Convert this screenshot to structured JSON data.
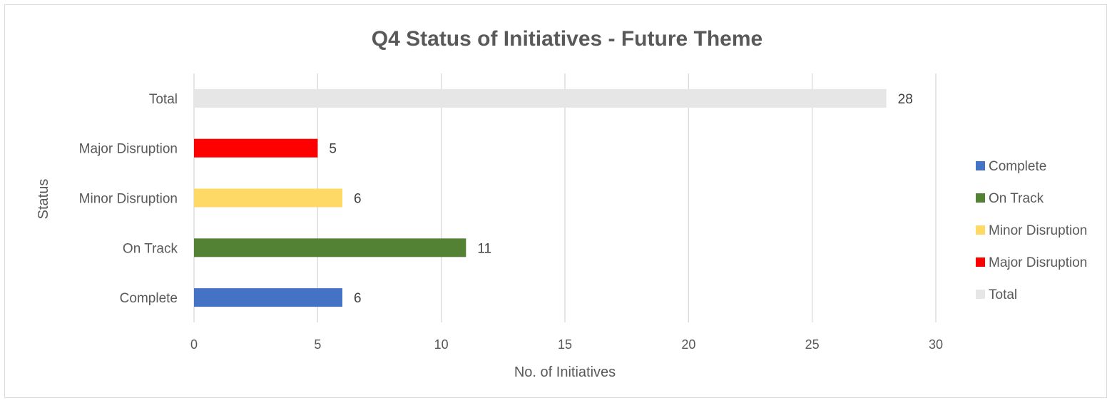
{
  "chart_data": {
    "type": "bar",
    "orientation": "horizontal",
    "title": "Q4 Status of Initiatives - Future Theme",
    "xlabel": "No. of Initiatives",
    "ylabel": "Status",
    "xlim": [
      0,
      30
    ],
    "xticks": [
      0,
      5,
      10,
      15,
      20,
      25,
      30
    ],
    "grid": "vertical",
    "legend_position": "right",
    "categories": [
      "Complete",
      "On Track",
      "Minor Disruption",
      "Major Disruption",
      "Total"
    ],
    "values": [
      6,
      11,
      6,
      5,
      28
    ],
    "colors": [
      "#4472C4",
      "#548235",
      "#FFD966",
      "#FF0000",
      "#E6E6E6"
    ],
    "legend": [
      "Complete",
      "On Track",
      "Minor Disruption",
      "Major Disruption",
      "Total"
    ]
  }
}
